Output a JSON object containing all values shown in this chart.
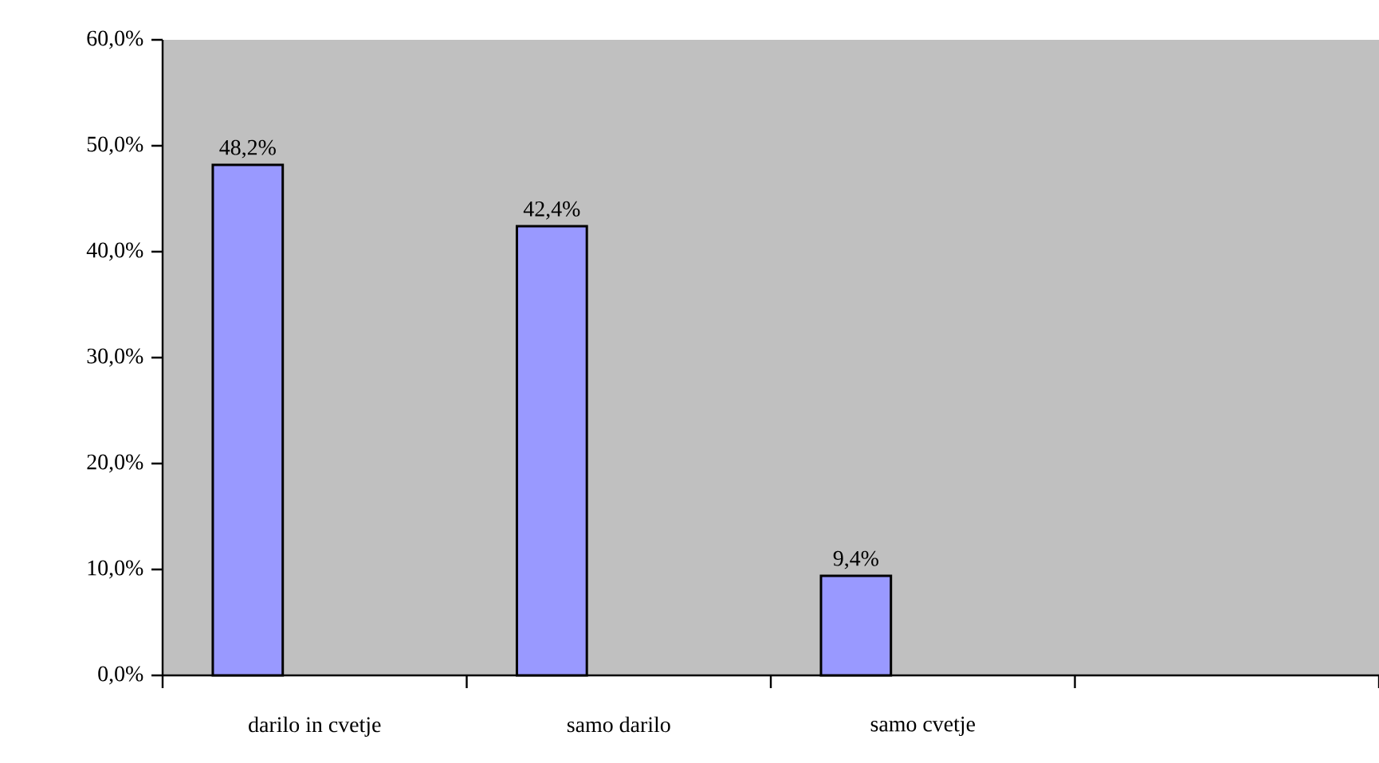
{
  "chart_data": {
    "type": "bar",
    "categories": [
      "darilo in cvetje",
      "samo darilo",
      "samo cvetje",
      null
    ],
    "values": [
      48.2,
      42.4,
      9.4,
      null
    ],
    "value_labels": [
      "48,2%",
      "42,4%",
      "9,4%",
      null
    ],
    "color": "#9999ff",
    "ylim": [
      0,
      60
    ],
    "yticks": [
      {
        "value": 0,
        "label": "0,0%"
      },
      {
        "value": 10,
        "label": "10,0%"
      },
      {
        "value": 20,
        "label": "20,0%"
      },
      {
        "value": 30,
        "label": "30,0%"
      },
      {
        "value": 40,
        "label": "40,0%"
      },
      {
        "value": 50,
        "label": "50,0%"
      },
      {
        "value": 60,
        "label": "60,0%"
      }
    ],
    "grid": false
  }
}
